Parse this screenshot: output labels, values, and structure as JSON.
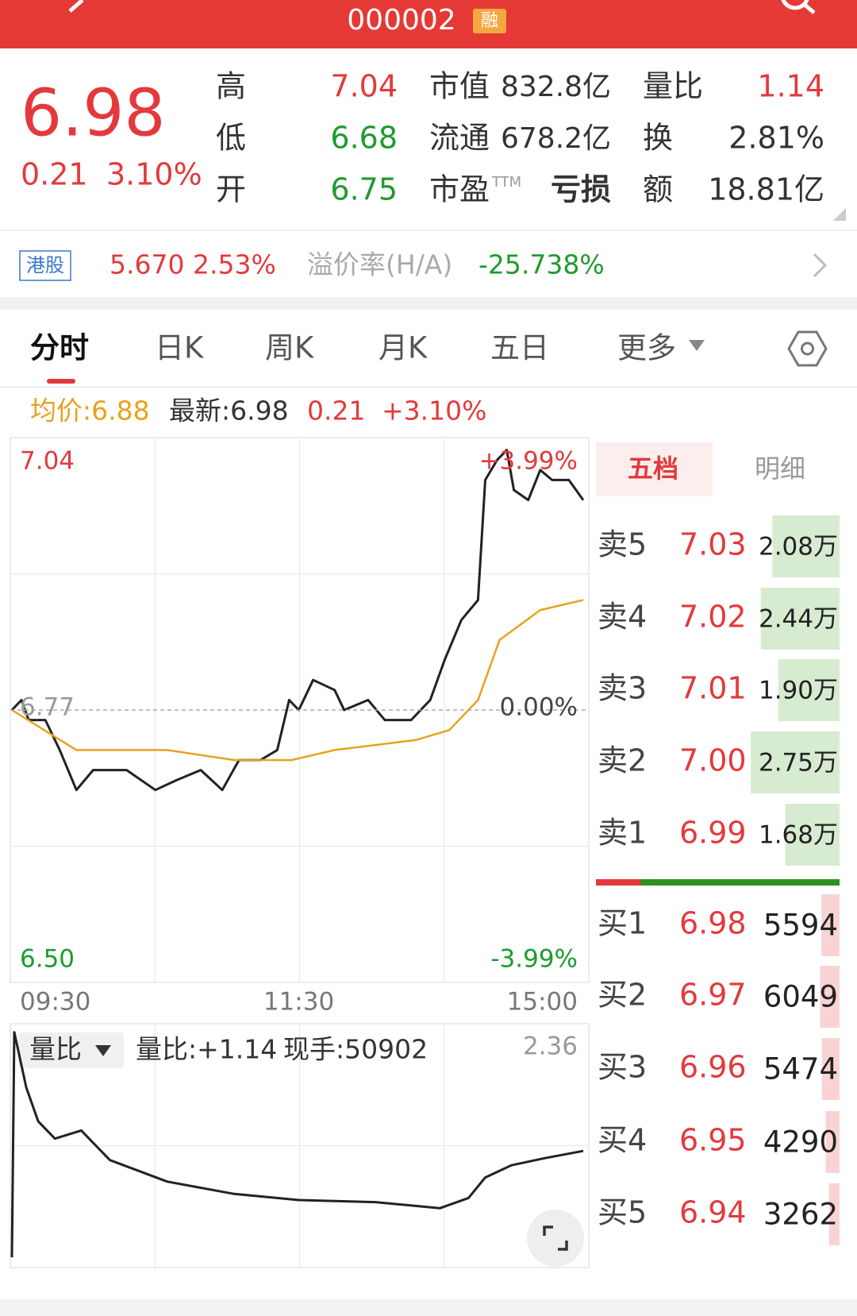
{
  "header": {
    "code": "000002",
    "badge": "融"
  },
  "quote": {
    "price": "6.98",
    "change": "0.21",
    "change_pct": "3.10%",
    "high": {
      "label": "高",
      "value": "7.04"
    },
    "low": {
      "label": "低",
      "value": "6.68"
    },
    "open": {
      "label": "开",
      "value": "6.75"
    },
    "market_cap": {
      "label": "市值",
      "value": "832.8亿"
    },
    "float_cap": {
      "label": "流通",
      "value": "678.2亿"
    },
    "pe": {
      "label": "市盈",
      "sup": "TTM",
      "value": "亏损"
    },
    "volume_ratio": {
      "label": "量比",
      "value": "1.14"
    },
    "turnover": {
      "label": "换",
      "value": "2.81%"
    },
    "amount": {
      "label": "额",
      "value": "18.81亿"
    }
  },
  "hk": {
    "tag": "港股",
    "price": "5.670",
    "change_pct": "2.53%",
    "premium_label": "溢价率(H/A)",
    "premium": "-25.738%"
  },
  "tabs": [
    "分时",
    "日K",
    "周K",
    "月K",
    "五日",
    "更多"
  ],
  "info_row": {
    "avg": "均价:6.88",
    "latest": "最新:6.98",
    "change": "0.21",
    "change_pct": "+3.10%"
  },
  "chart_data": [
    {
      "type": "line",
      "xlim": [
        0,
        240
      ],
      "xticks": [
        {
          "value": 0,
          "label": "09:30"
        },
        {
          "value": 120,
          "label": "11:30"
        },
        {
          "value": 240,
          "label": "15:00"
        }
      ],
      "ylim": [
        6.5,
        7.04
      ],
      "yticks": [
        7.04,
        6.77,
        {
          "value": 6.5,
          "label": "6.50"
        }
      ],
      "y2lim": [
        -3.99,
        3.99
      ],
      "y2ticks": [
        {
          "value": 3.99,
          "label": "+3.99%"
        },
        {
          "value": 0,
          "label": "0.00%"
        },
        {
          "value": -3.99,
          "label": "-3.99%"
        }
      ],
      "series": [
        {
          "color": "#222222",
          "x": [
            0,
            4,
            7,
            14,
            20,
            27,
            34,
            41,
            48,
            60,
            69,
            79,
            88,
            95,
            104,
            111,
            116,
            120,
            126,
            135,
            139,
            149,
            156,
            167,
            175,
            181,
            188,
            195,
            198,
            203,
            207,
            210,
            216,
            221,
            226,
            233,
            239
          ],
          "values": [
            6.77,
            6.78,
            6.76,
            6.76,
            6.73,
            6.69,
            6.71,
            6.71,
            6.71,
            6.69,
            6.7,
            6.71,
            6.69,
            6.72,
            6.72,
            6.73,
            6.78,
            6.77,
            6.8,
            6.79,
            6.77,
            6.78,
            6.76,
            6.76,
            6.78,
            6.82,
            6.86,
            6.88,
            7,
            7.02,
            7.03,
            6.99,
            6.98,
            7.01,
            7,
            7,
            6.98
          ]
        },
        {
          "color": "#e6a31e",
          "x": [
            0,
            27,
            65,
            93,
            117,
            135,
            169,
            183,
            195,
            204,
            221,
            239
          ],
          "values": [
            6.77,
            6.73,
            6.73,
            6.72,
            6.72,
            6.73,
            6.74,
            6.75,
            6.78,
            6.84,
            6.87,
            6.88
          ]
        }
      ]
    },
    {
      "type": "line",
      "selector": "量比",
      "labels": [
        "量比:+1.14",
        "现手:50902"
      ],
      "xlim": [
        0,
        240
      ],
      "ylim": [
        0,
        2.36
      ],
      "yticks": [
        2.36
      ],
      "series": [
        {
          "color": "#222222",
          "x": [
            0,
            1,
            6,
            11,
            18,
            29,
            41,
            65,
            93,
            120,
            152,
            179,
            191,
            198,
            209,
            223,
            239
          ],
          "values": [
            0.1,
            2.3,
            1.76,
            1.43,
            1.26,
            1.34,
            1.05,
            0.84,
            0.72,
            0.66,
            0.64,
            0.58,
            0.68,
            0.88,
            1,
            1.07,
            1.14
          ]
        }
      ]
    }
  ],
  "order_book": {
    "tabs": [
      "五档",
      "明细"
    ],
    "asks": [
      {
        "level": "卖5",
        "price": "7.03",
        "volume": 20800,
        "volume_label": "2.08万"
      },
      {
        "level": "卖4",
        "price": "7.02",
        "volume": 24400,
        "volume_label": "2.44万"
      },
      {
        "level": "卖3",
        "price": "7.01",
        "volume": 19000,
        "volume_label": "1.90万"
      },
      {
        "level": "卖2",
        "price": "7.00",
        "volume": 27500,
        "volume_label": "2.75万"
      },
      {
        "level": "卖1",
        "price": "6.99",
        "volume": 16800,
        "volume_label": "1.68万"
      }
    ],
    "bids": [
      {
        "level": "买1",
        "price": "6.98",
        "volume": 5594
      },
      {
        "level": "买2",
        "price": "6.97",
        "volume": 6049
      },
      {
        "level": "买3",
        "price": "6.96",
        "volume": 5474
      },
      {
        "level": "买4",
        "price": "6.95",
        "volume": 4290
      },
      {
        "level": "买5",
        "price": "6.94",
        "volume": 3262
      }
    ]
  }
}
